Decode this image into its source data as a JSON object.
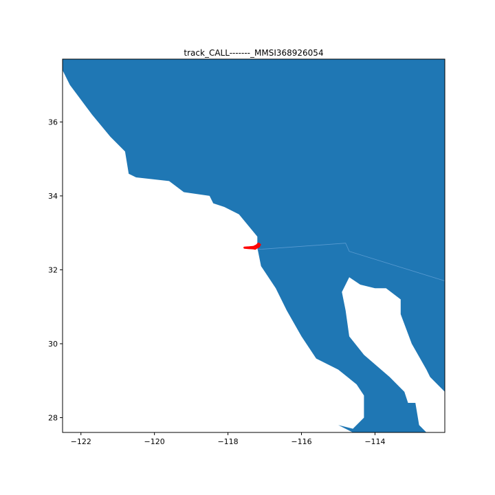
{
  "chart_data": {
    "type": "map",
    "title": "track_CALL-------_MMSI368926054",
    "xlabel": "",
    "ylabel": "",
    "xlim": [
      -122.5,
      -112.1
    ],
    "ylim": [
      27.6,
      37.7
    ],
    "x_ticks": [
      -122,
      -120,
      -118,
      -116,
      -114
    ],
    "x_tick_labels": [
      "−122",
      "−120",
      "−118",
      "−116",
      "−114"
    ],
    "y_ticks": [
      28,
      30,
      32,
      34,
      36
    ],
    "y_tick_labels": [
      "28",
      "30",
      "32",
      "34",
      "36"
    ],
    "grid": false,
    "colors": {
      "land": "#1f77b4",
      "track": "#ff0000",
      "background": "#ffffff",
      "axes": "#000000"
    },
    "land": {
      "mainland": [
        [
          -122.5,
          37.7
        ],
        [
          -112.1,
          37.7
        ],
        [
          -112.1,
          28.7
        ],
        [
          -112.5,
          29.1
        ],
        [
          -112.6,
          29.3
        ],
        [
          -113.0,
          30.0
        ],
        [
          -113.3,
          30.8
        ],
        [
          -113.3,
          31.2
        ],
        [
          -113.7,
          31.5
        ],
        [
          -114.0,
          31.5
        ],
        [
          -114.4,
          31.6
        ],
        [
          -114.7,
          31.8
        ],
        [
          -114.9,
          31.4
        ],
        [
          -114.8,
          30.9
        ],
        [
          -114.7,
          30.2
        ],
        [
          -114.3,
          29.7
        ],
        [
          -113.6,
          29.1
        ],
        [
          -113.3,
          28.8
        ],
        [
          -113.2,
          28.7
        ],
        [
          -113.1,
          28.4
        ],
        [
          -112.9,
          28.4
        ],
        [
          -112.8,
          27.8
        ],
        [
          -112.6,
          27.6
        ],
        [
          -114.6,
          27.6
        ],
        [
          -115.0,
          27.8
        ],
        [
          -114.6,
          27.7
        ],
        [
          -114.3,
          28.0
        ],
        [
          -114.3,
          28.6
        ],
        [
          -114.5,
          28.9
        ],
        [
          -115.0,
          29.3
        ],
        [
          -115.6,
          29.6
        ],
        [
          -116.0,
          30.2
        ],
        [
          -116.4,
          30.9
        ],
        [
          -116.7,
          31.5
        ],
        [
          -117.1,
          32.1
        ],
        [
          -117.2,
          32.6
        ],
        [
          -117.2,
          32.9
        ],
        [
          -117.7,
          33.5
        ],
        [
          -118.1,
          33.7
        ],
        [
          -118.4,
          33.8
        ],
        [
          -118.5,
          34.0
        ],
        [
          -119.2,
          34.1
        ],
        [
          -119.6,
          34.4
        ],
        [
          -120.5,
          34.5
        ],
        [
          -120.7,
          34.6
        ],
        [
          -120.8,
          35.2
        ],
        [
          -121.2,
          35.6
        ],
        [
          -121.7,
          36.2
        ],
        [
          -122.3,
          37.0
        ],
        [
          -122.5,
          37.4
        ]
      ],
      "border_line": [
        [
          -117.2,
          32.55
        ],
        [
          -114.8,
          32.72
        ],
        [
          -114.7,
          32.5
        ],
        [
          -112.1,
          31.7
        ]
      ]
    },
    "track": {
      "lon": [
        -117.55,
        -117.42,
        -117.3,
        -117.22,
        -117.17,
        -117.13,
        -117.16,
        -117.22,
        -117.26,
        -117.3,
        -117.45,
        -117.55
      ],
      "lat": [
        32.6,
        32.61,
        32.62,
        32.66,
        32.71,
        32.68,
        32.63,
        32.6,
        32.57,
        32.58,
        32.59,
        32.6
      ]
    }
  }
}
